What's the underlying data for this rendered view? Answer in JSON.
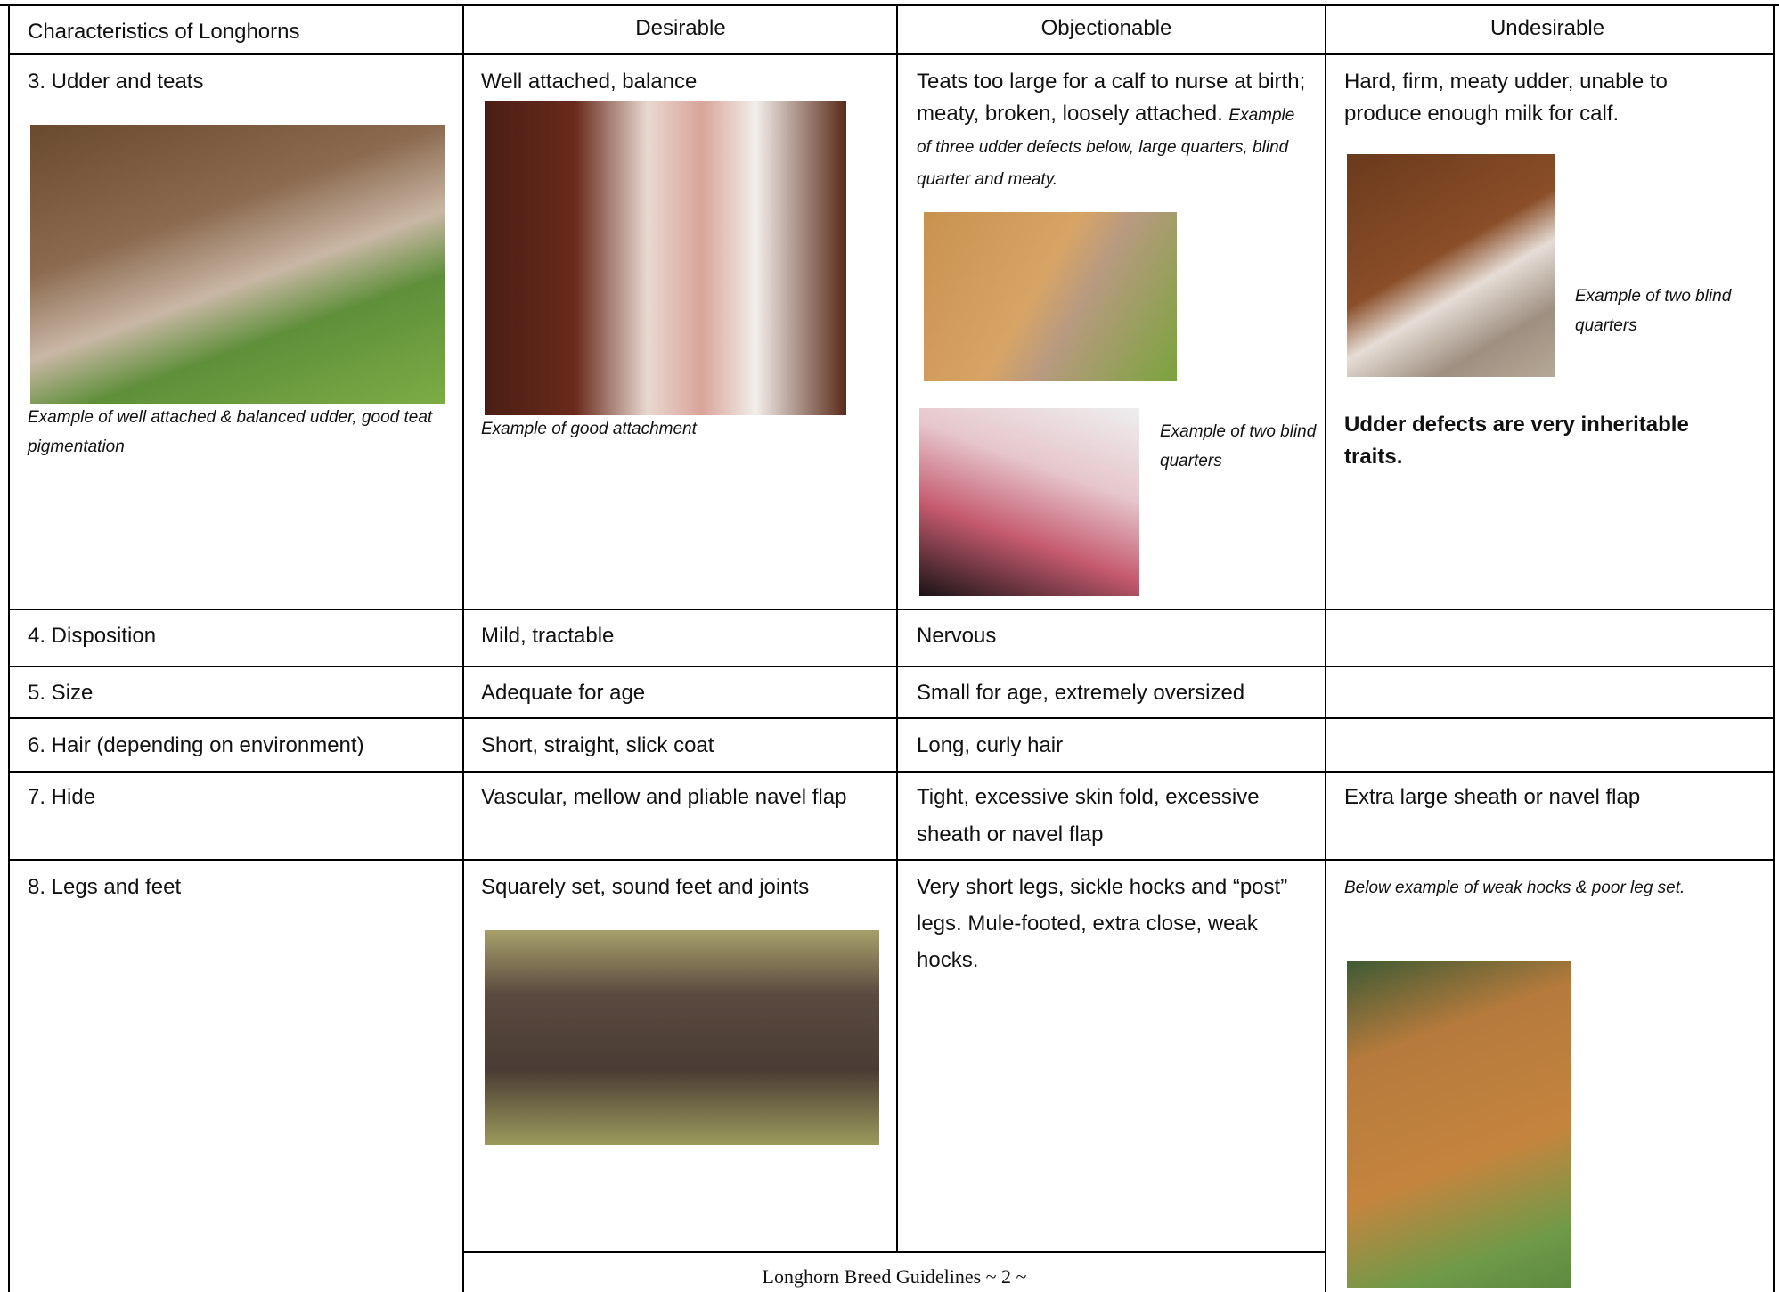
{
  "header": {
    "columns": [
      "Characteristics of Longhorns",
      "Desirable",
      "Objectionable",
      "Undesirable"
    ]
  },
  "table": {
    "rows": [
      {
        "characteristic": "3. Udder and teats",
        "characteristic_caption": "Example of well attached & balanced udder, good teat pigmentation",
        "desirable": "Well attached, balance",
        "desirable_caption": "Example of good attachment",
        "objectionable": "Teats too large for a calf to nurse at birth; meaty, broken, loosely attached.",
        "objectionable_note": "Example of three udder defects below, large quarters, blind quarter and meaty.",
        "objectionable_caption": "Example of two blind quarters",
        "undesirable": "Hard, firm, meaty udder, unable to produce enough milk for calf.",
        "undesirable_caption": "Example of two blind quarters",
        "undesirable_note": "Udder defects are very inheritable traits."
      },
      {
        "characteristic": "4. Disposition",
        "desirable": "Mild, tractable",
        "objectionable": "Nervous"
      },
      {
        "characteristic": "5. Size",
        "desirable": "Adequate for age",
        "objectionable": "Small for age, extremely oversized"
      },
      {
        "characteristic": "6. Hair (depending on environment)",
        "desirable": "Short, straight, slick coat",
        "objectionable": "Long, curly hair"
      },
      {
        "characteristic": "7. Hide",
        "desirable": "Vascular, mellow and pliable navel flap",
        "objectionable": "Tight, excessive skin fold, excessive sheath or navel flap",
        "undesirable": "Extra large sheath or navel flap"
      },
      {
        "characteristic": "8. Legs and feet",
        "desirable": "Squarely set, sound feet and joints",
        "objectionable": "Very short legs, sickle hocks and “post” legs. Mule-footed, extra close, weak hocks.",
        "undesirable_note": "Below example of weak hocks & poor leg set."
      }
    ]
  },
  "footer": {
    "text": "Longhorn Breed Guidelines ~ 2 ~"
  }
}
